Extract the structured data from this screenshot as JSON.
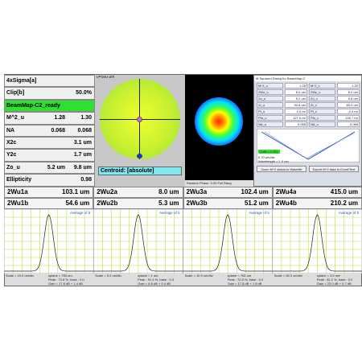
{
  "left_panel": {
    "mode": "4xSigma[a]",
    "clip": {
      "label": "Clip[b]",
      "value": "50.0%"
    },
    "status": "BeamMap-C2_ready",
    "rows": [
      {
        "label": "M^2_u",
        "values": [
          "1.28",
          "1.30"
        ]
      },
      {
        "label": "NA",
        "values": [
          "0.068",
          "0.068"
        ]
      },
      {
        "label": "X2c",
        "values": [
          "3.1 um"
        ]
      },
      {
        "label": "Y2c",
        "values": [
          "1.7 um"
        ]
      },
      {
        "label": "Zo_u",
        "values": [
          "5.2 um",
          "9.8 um"
        ]
      },
      {
        "label": "Ellipticity",
        "values": [
          "0.98"
        ]
      }
    ]
  },
  "map_panel": {
    "scale": "0=500 um",
    "centroid": "Centroid:  [absolute]"
  },
  "beam_panel": {
    "footer": "Rotation Phase: 0.00    Full Rang"
  },
  "dialog": {
    "title": "M Squared Dialog for BeamMap-C",
    "rows": [
      [
        "M^2_u",
        "1.28",
        "M^2_v",
        "1.30"
      ],
      [
        "2Wo_u",
        "8.0 um",
        "2Wo_v",
        "5.0 um"
      ],
      [
        "Zo_u",
        "5.2 um",
        "Zo_v",
        "9.8 um"
      ],
      [
        "Zr_u",
        "94.8 um",
        "Zr_v",
        "80.0 um"
      ],
      [
        "Pt_u",
        "0.0 mr",
        "Pt_v",
        "-0.4 mr"
      ],
      [
        "Pto_u",
        "127.0 mr",
        "Pto_v",
        "126.7 mr"
      ],
      [
        "NA_u",
        "0.068",
        "NA_v",
        "0.068"
      ]
    ],
    "zoffs": "Zoffs = 0.0%",
    "scale": "0.70 um/div",
    "wavelength": "Wavelength = 1.0 um",
    "buttons": [
      "Zoom M^2 status to Wavefile",
      "Export M^2 data to Excel/Text"
    ]
  },
  "widths": [
    [
      {
        "label": "2Wu1a",
        "value": "103.1 um"
      },
      {
        "label": "2Wu2a",
        "value": "8.0 um"
      },
      {
        "label": "2Wu3a",
        "value": "102.4 um"
      },
      {
        "label": "2Wu4a",
        "value": "415.0 um"
      }
    ],
    [
      {
        "label": "2Wu1b",
        "value": "54.6 um"
      },
      {
        "label": "2Wu2b",
        "value": "5.3 um"
      },
      {
        "label": "2Wu3b",
        "value": "51.2 um"
      },
      {
        "label": "2Wu4b",
        "value": "210.2 um"
      }
    ]
  ],
  "profiles": [
    {
      "legend": "Average of 5",
      "info": [
        "Scale = 10.0 um/div",
        "zplane = 755 um",
        "Peak : 73.6 %, base : 0.0",
        "Gain = 17.8 dB + 1.4 dB"
      ]
    },
    {
      "legend": "Average of 5",
      "info": [
        "Scale = 5.0 um/div",
        "zplane = 1 um",
        "Peak : 91.4 %, base : 0.3",
        "Gain = 8.8 dB + 0.4 dB"
      ]
    },
    {
      "legend": "Average of 5",
      "info": [
        "Scale = 10.0 um/div",
        "zplane = 763 um",
        "Peak : 72.8 %, base : 0.0",
        "Gain = 17.8 dB + 1.5 dB"
      ]
    },
    {
      "legend": "Average of 5",
      "info": [
        "Scale = 50.0 um/div",
        "zplane = 3.0 mm",
        "Peak : 81.2 %, base : 0.0",
        "Gain = 23.0 dB + 0.7 dB"
      ]
    }
  ]
}
